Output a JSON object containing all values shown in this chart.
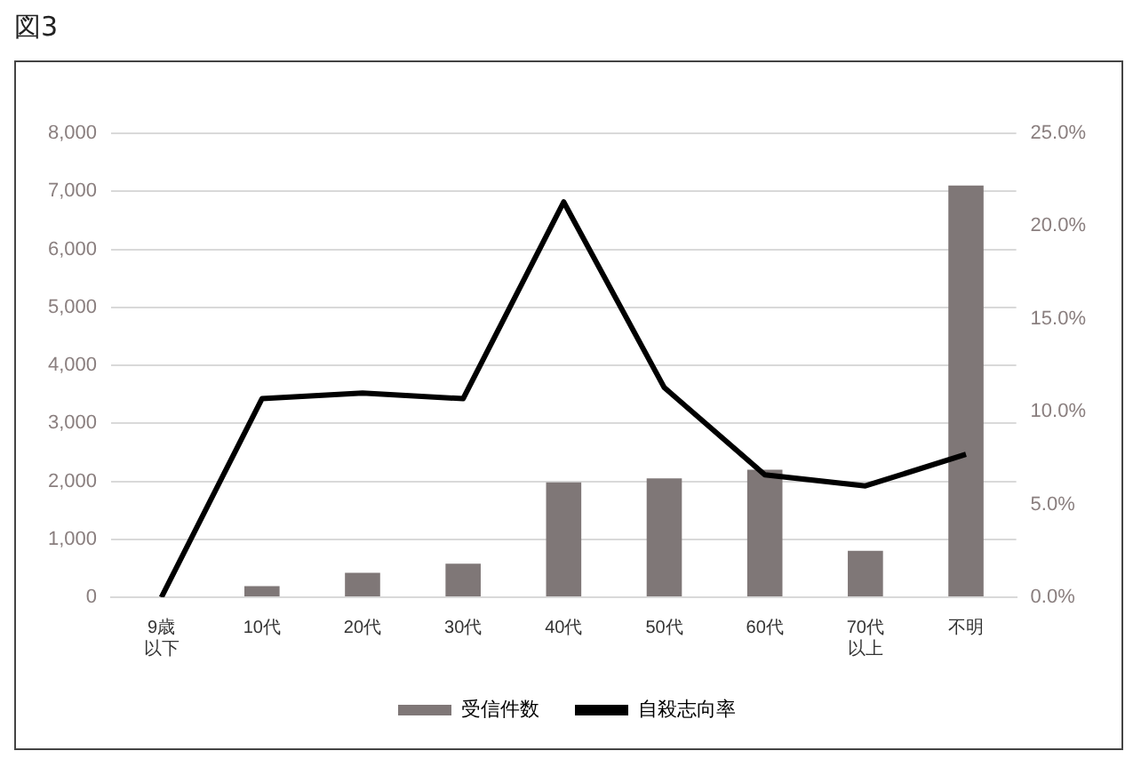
{
  "chart_data": {
    "type": "bar",
    "title": "図3",
    "categories": [
      "9歳以下",
      "10代",
      "20代",
      "30代",
      "40代",
      "50代",
      "60代",
      "70代以上",
      "不明"
    ],
    "series": [
      {
        "name": "受信件数",
        "color": "#7f7777",
        "values": [
          0,
          190,
          420,
          580,
          1980,
          2050,
          2200,
          800,
          7100
        ]
      },
      {
        "name": "自殺志向率",
        "type": "line",
        "axis": "y2",
        "color": "#000000",
        "values": [
          0,
          10.7,
          11.0,
          10.7,
          21.3,
          11.3,
          6.6,
          6.0,
          7.7
        ]
      }
    ],
    "ylim": [
      0,
      8000
    ],
    "yticks": [
      {
        "value": 0,
        "label": "0"
      },
      {
        "value": 1000,
        "label": "1,000"
      },
      {
        "value": 2000,
        "label": "2,000"
      },
      {
        "value": 3000,
        "label": "3,000"
      },
      {
        "value": 4000,
        "label": "4,000"
      },
      {
        "value": 5000,
        "label": "5,000"
      },
      {
        "value": 6000,
        "label": "6,000"
      },
      {
        "value": 7000,
        "label": "7,000"
      },
      {
        "value": 8000,
        "label": "8,000"
      }
    ],
    "y2lim": [
      0,
      25
    ],
    "y2ticks": [
      {
        "value": 0,
        "label": "0.0%"
      },
      {
        "value": 5,
        "label": "5.0%"
      },
      {
        "value": 10,
        "label": "10.0%"
      },
      {
        "value": 15,
        "label": "15.0%"
      },
      {
        "value": 20,
        "label": "20.0%"
      },
      {
        "value": 25,
        "label": "25.0%"
      }
    ],
    "grid": "y",
    "legend": "bottom",
    "marker": "none",
    "line_style": "solid"
  }
}
